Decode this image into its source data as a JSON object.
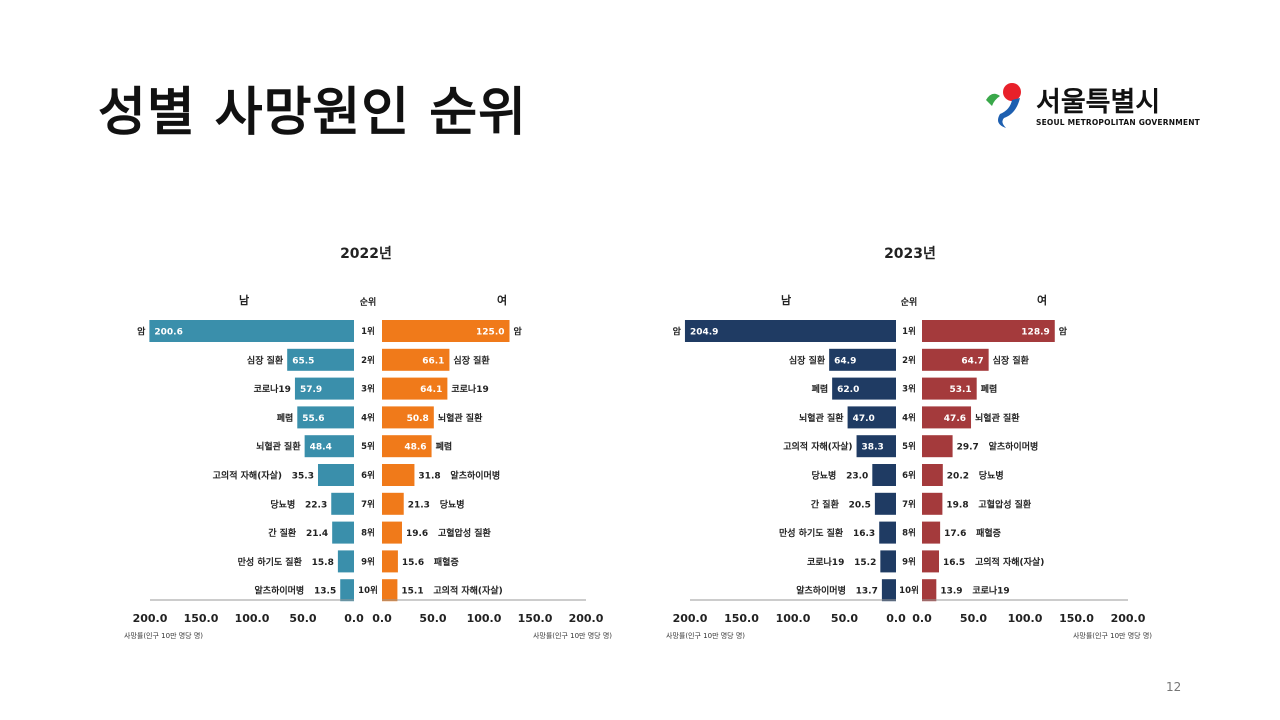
{
  "slide": {
    "title": "성별 사망원인 순위",
    "page_number": "12"
  },
  "logo": {
    "name": "서울특별시",
    "subtitle": "SEOUL METROPOLITAN GOVERNMENT"
  },
  "colors": {
    "male_2022": "#3a8fab",
    "female_2022": "#f07a1a",
    "male_2023": "#1f3b63",
    "female_2023": "#a43a3c"
  },
  "chart_data": [
    {
      "type": "bar",
      "title": "2022년",
      "header_male": "남",
      "header_rank": "순위",
      "header_female": "여",
      "ranks": [
        "1위",
        "2위",
        "3위",
        "4위",
        "5위",
        "6위",
        "7위",
        "8위",
        "9위",
        "10위"
      ],
      "xlim": [
        0,
        200
      ],
      "ticks": [
        "200.0",
        "150.0",
        "100.0",
        "50.0",
        "0.0"
      ],
      "ticks_right": [
        "0.0",
        "50.0",
        "100.0",
        "150.0",
        "200.0"
      ],
      "xlabel": "사망률(인구 10만 명당 명)",
      "series": [
        {
          "name": "남",
          "categories": [
            "암",
            "심장 질환",
            "코로나19",
            "폐렴",
            "뇌혈관 질환",
            "고의적 자해(자살)",
            "당뇨병",
            "간 질환",
            "만성 하기도 질환",
            "알츠하이머병"
          ],
          "values": [
            200.6,
            65.5,
            57.9,
            55.6,
            48.4,
            35.3,
            22.3,
            21.4,
            15.8,
            13.5
          ],
          "value_labels": [
            "200.6",
            "65.5",
            "57.9",
            "55.6",
            "48.4",
            "35.3",
            "22.3",
            "21.4",
            "15.8",
            "13.5"
          ]
        },
        {
          "name": "여",
          "categories": [
            "암",
            "심장 질환",
            "코로나19",
            "뇌혈관 질환",
            "폐렴",
            "알츠하이머병",
            "당뇨병",
            "고혈압성 질환",
            "패혈증",
            "고의적 자해(자살)"
          ],
          "values": [
            125.0,
            66.1,
            64.1,
            50.8,
            48.6,
            31.8,
            21.3,
            19.6,
            15.6,
            15.1
          ],
          "value_labels": [
            "125.0",
            "66.1",
            "64.1",
            "50.8",
            "48.6",
            "31.8",
            "21.3",
            "19.6",
            "15.6",
            "15.1"
          ]
        }
      ]
    },
    {
      "type": "bar",
      "title": "2023년",
      "header_male": "남",
      "header_rank": "순위",
      "header_female": "여",
      "ranks": [
        "1위",
        "2위",
        "3위",
        "4위",
        "5위",
        "6위",
        "7위",
        "8위",
        "9위",
        "10위"
      ],
      "xlim": [
        0,
        200
      ],
      "ticks": [
        "200.0",
        "150.0",
        "100.0",
        "50.0",
        "0.0"
      ],
      "ticks_right": [
        "0.0",
        "50.0",
        "100.0",
        "150.0",
        "200.0"
      ],
      "xlabel": "사망률(인구 10만 명당 명)",
      "series": [
        {
          "name": "남",
          "categories": [
            "암",
            "심장 질환",
            "폐렴",
            "뇌혈관 질환",
            "고의적 자해(자살)",
            "당뇨병",
            "간 질환",
            "만성 하기도 질환",
            "코로나19",
            "알츠하이머병"
          ],
          "values": [
            204.9,
            64.9,
            62.0,
            47.0,
            38.3,
            23.0,
            20.5,
            16.3,
            15.2,
            13.7
          ],
          "value_labels": [
            "204.9",
            "64.9",
            "62.0",
            "47.0",
            "38.3",
            "23.0",
            "20.5",
            "16.3",
            "15.2",
            "13.7"
          ]
        },
        {
          "name": "여",
          "categories": [
            "암",
            "심장 질환",
            "폐렴",
            "뇌혈관 질환",
            "알츠하이머병",
            "당뇨병",
            "고혈압성 질환",
            "패혈증",
            "고의적 자해(자살)",
            "코로나19"
          ],
          "values": [
            128.9,
            64.7,
            53.1,
            47.6,
            29.7,
            20.2,
            19.8,
            17.6,
            16.5,
            13.9
          ],
          "value_labels": [
            "128.9",
            "64.7",
            "53.1",
            "47.6",
            "29.7",
            "20.2",
            "19.8",
            "17.6",
            "16.5",
            "13.9"
          ]
        }
      ]
    }
  ]
}
